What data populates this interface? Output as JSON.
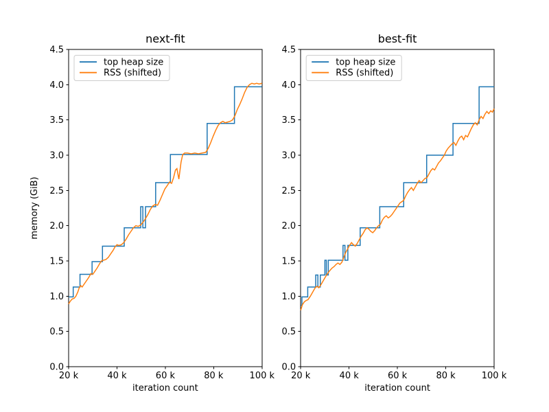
{
  "figure": {
    "background": "#ffffff",
    "text_color": "#000000",
    "spine_color": "#000000",
    "legend_border_color": "#cccccc",
    "legend_fill": "#ffffff"
  },
  "chart_data": [
    {
      "type": "line",
      "title": "next-fit",
      "xlabel": "iteration count",
      "ylabel": "memory (GiB)",
      "xlim_k": [
        20,
        100
      ],
      "ylim": [
        0,
        4.5
      ],
      "x_unit": "iterations (values in thousands)",
      "xticks_k": [
        20,
        40,
        60,
        80,
        100
      ],
      "xtick_labels": [
        "20 k",
        "40 k",
        "60 k",
        "80 k",
        "100 k"
      ],
      "yticks": [
        0,
        0.5,
        1.0,
        1.5,
        2.0,
        2.5,
        3.0,
        3.5,
        4.0,
        4.5
      ],
      "ytick_labels": [
        "0.0",
        "0.5",
        "1.0",
        "1.5",
        "2.0",
        "2.5",
        "3.0",
        "3.5",
        "4.0",
        "4.5"
      ],
      "legend_position": "upper left",
      "grid": false,
      "series": [
        {
          "name": "top heap size",
          "color": "#1f77b4",
          "x_k": [
            20,
            21.9,
            21.9,
            24.7,
            24.7,
            29.7,
            29.7,
            34.0,
            34.0,
            43.0,
            43.0,
            49.8,
            49.8,
            50.7,
            50.7,
            51.8,
            51.8,
            56.0,
            56.0,
            62.1,
            62.1,
            77.3,
            77.3,
            88.6,
            88.6,
            100
          ],
          "y_gib": [
            0.99,
            0.99,
            1.13,
            1.13,
            1.31,
            1.31,
            1.49,
            1.49,
            1.71,
            1.71,
            1.97,
            1.97,
            2.27,
            2.27,
            1.97,
            1.97,
            2.27,
            2.27,
            2.61,
            2.61,
            3.01,
            3.01,
            3.45,
            3.45,
            3.97,
            3.97
          ]
        },
        {
          "name": "RSS (shifted)",
          "color": "#ff7f0e",
          "x_k": [
            20,
            20.7,
            21.5,
            22.3,
            23.0,
            23.8,
            24.4,
            25.0,
            25.6,
            26.4,
            27.4,
            28.4,
            29.2,
            30.0,
            30.8,
            31.8,
            32.8,
            33.6,
            34.4,
            35.4,
            36.4,
            37.4,
            38.4,
            39.2,
            40.0,
            40.8,
            41.8,
            42.8,
            43.8,
            44.8,
            45.8,
            46.8,
            47.8,
            48.8,
            49.8,
            50.8,
            51.8,
            52.8,
            53.8,
            54.8,
            55.8,
            56.8,
            57.8,
            58.8,
            59.8,
            60.8,
            61.8,
            62.6,
            63.4,
            64.2,
            64.8,
            65.6,
            66.5,
            67.2,
            68.0,
            69.2,
            70.7,
            72.2,
            73.7,
            75.2,
            76.7,
            77.8,
            78.8,
            79.8,
            80.8,
            81.8,
            82.8,
            83.8,
            84.8,
            85.8,
            86.8,
            87.8,
            88.8,
            89.8,
            90.8,
            91.8,
            92.8,
            93.8,
            94.8,
            95.8,
            96.8,
            97.8,
            98.8,
            100
          ],
          "y_gib": [
            0.89,
            0.93,
            0.96,
            0.97,
            1.0,
            1.06,
            1.12,
            1.15,
            1.13,
            1.17,
            1.22,
            1.27,
            1.32,
            1.31,
            1.35,
            1.4,
            1.46,
            1.5,
            1.51,
            1.52,
            1.55,
            1.6,
            1.65,
            1.7,
            1.73,
            1.72,
            1.73,
            1.76,
            1.81,
            1.87,
            1.92,
            1.97,
            2.0,
            1.99,
            2.01,
            2.05,
            2.1,
            2.16,
            2.23,
            2.28,
            2.3,
            2.29,
            2.36,
            2.44,
            2.52,
            2.57,
            2.62,
            2.6,
            2.68,
            2.79,
            2.81,
            2.66,
            2.9,
            3.01,
            3.03,
            3.03,
            3.02,
            3.03,
            3.02,
            3.03,
            3.04,
            3.1,
            3.18,
            3.27,
            3.35,
            3.42,
            3.46,
            3.48,
            3.46,
            3.47,
            3.48,
            3.5,
            3.56,
            3.65,
            3.72,
            3.8,
            3.89,
            3.96,
            4.0,
            4.02,
            4.01,
            4.02,
            4.01,
            4.02
          ]
        }
      ]
    },
    {
      "type": "line",
      "title": "best-fit",
      "xlabel": "iteration count",
      "ylabel": "",
      "xlim_k": [
        20,
        100
      ],
      "ylim": [
        0,
        4.5
      ],
      "x_unit": "iterations (values in thousands)",
      "xticks_k": [
        20,
        40,
        60,
        80,
        100
      ],
      "xtick_labels": [
        "20 k",
        "40 k",
        "60 k",
        "80 k",
        "100 k"
      ],
      "yticks": [
        0,
        0.5,
        1.0,
        1.5,
        2.0,
        2.5,
        3.0,
        3.5,
        4.0,
        4.5
      ],
      "ytick_labels": [
        "0.0",
        "0.5",
        "1.0",
        "1.5",
        "2.0",
        "2.5",
        "3.0",
        "3.5",
        "4.0",
        "4.5"
      ],
      "legend_position": "upper left",
      "grid": false,
      "series": [
        {
          "name": "top heap size",
          "color": "#1f77b4",
          "x_k": [
            20,
            20.5,
            20.5,
            22.9,
            22.9,
            26.2,
            26.2,
            27.1,
            27.1,
            28.1,
            28.1,
            30.0,
            30.0,
            30.6,
            30.6,
            31.4,
            31.4,
            37.5,
            37.5,
            38.3,
            38.3,
            39.5,
            39.5,
            44.6,
            44.6,
            52.7,
            52.7,
            62.6,
            62.6,
            72.1,
            72.1,
            83.0,
            83.0,
            93.8,
            93.8,
            100
          ],
          "y_gib": [
            0.87,
            0.87,
            0.99,
            0.99,
            1.13,
            1.13,
            1.3,
            1.3,
            1.13,
            1.13,
            1.3,
            1.3,
            1.51,
            1.51,
            1.3,
            1.3,
            1.51,
            1.51,
            1.72,
            1.72,
            1.51,
            1.51,
            1.72,
            1.72,
            1.97,
            1.97,
            2.27,
            2.27,
            2.61,
            2.61,
            3.0,
            3.0,
            3.45,
            3.45,
            3.97,
            3.97
          ]
        },
        {
          "name": "RSS (shifted)",
          "color": "#ff7f0e",
          "x_k": [
            20,
            20.7,
            21.5,
            22.3,
            23,
            24,
            25,
            26,
            26.8,
            27.5,
            28.3,
            29,
            30,
            30.7,
            31.5,
            32.2,
            33,
            33.8,
            34.6,
            35.4,
            36.2,
            37,
            37.8,
            38.6,
            39.4,
            40.2,
            41,
            41.8,
            42.6,
            43.4,
            44.2,
            45,
            45.8,
            46.6,
            47.4,
            48.2,
            49,
            49.8,
            50.6,
            51.4,
            52.2,
            53,
            53.8,
            54.6,
            55.4,
            56.2,
            57,
            57.8,
            58.6,
            59.4,
            60.2,
            61,
            61.8,
            62.6,
            63.4,
            64.2,
            65,
            65.8,
            66.6,
            67.4,
            68.2,
            69,
            69.8,
            70.6,
            71.4,
            72.2,
            73,
            73.8,
            74.6,
            75.4,
            76.2,
            77,
            77.8,
            78.6,
            79.4,
            80.2,
            81,
            81.8,
            82.6,
            83.4,
            84.2,
            85,
            85.8,
            86.6,
            87.4,
            88.2,
            89,
            89.8,
            90.6,
            91.4,
            92.2,
            93,
            93.8,
            94.6,
            95.4,
            96.2,
            97,
            97.8,
            98.6,
            99.3,
            100
          ],
          "y_gib": [
            0.8,
            0.88,
            0.92,
            0.94,
            0.95,
            1.0,
            1.06,
            1.12,
            1.14,
            1.12,
            1.16,
            1.2,
            1.26,
            1.3,
            1.34,
            1.37,
            1.4,
            1.42,
            1.45,
            1.47,
            1.45,
            1.48,
            1.55,
            1.62,
            1.67,
            1.72,
            1.76,
            1.73,
            1.71,
            1.75,
            1.8,
            1.85,
            1.89,
            1.94,
            1.97,
            1.95,
            1.92,
            1.9,
            1.93,
            1.97,
            2.0,
            2.02,
            2.08,
            2.12,
            2.14,
            2.11,
            2.13,
            2.16,
            2.2,
            2.24,
            2.28,
            2.32,
            2.34,
            2.36,
            2.42,
            2.47,
            2.51,
            2.54,
            2.5,
            2.55,
            2.6,
            2.64,
            2.61,
            2.64,
            2.67,
            2.68,
            2.73,
            2.78,
            2.81,
            2.79,
            2.84,
            2.89,
            2.92,
            2.96,
            3.0,
            3.06,
            3.1,
            3.13,
            3.16,
            3.18,
            3.14,
            3.2,
            3.25,
            3.27,
            3.22,
            3.28,
            3.26,
            3.32,
            3.38,
            3.43,
            3.46,
            3.43,
            3.5,
            3.55,
            3.52,
            3.58,
            3.62,
            3.59,
            3.63,
            3.61,
            3.66
          ]
        }
      ]
    }
  ]
}
